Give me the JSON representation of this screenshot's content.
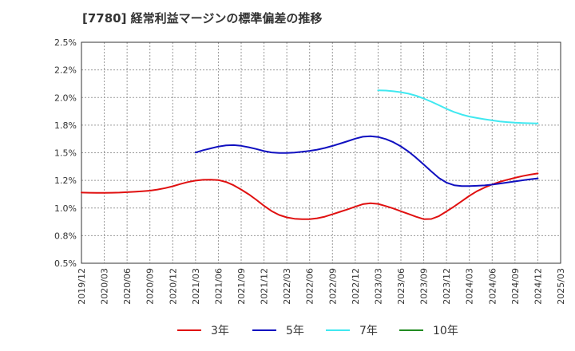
{
  "chart_data": {
    "type": "line",
    "title": "[7780]  経常利益マージンの標準偏差の推移",
    "xlabel": "",
    "ylabel": "",
    "ylim": [
      0.005,
      0.025
    ],
    "y_ticks": [
      "0.5%",
      "0.8%",
      "1.0%",
      "1.2%",
      "1.5%",
      "1.8%",
      "2.0%",
      "2.2%",
      "2.5%"
    ],
    "x_ticks": [
      "2019/12",
      "2020/03",
      "2020/06",
      "2020/09",
      "2020/12",
      "2021/03",
      "2021/06",
      "2021/09",
      "2021/12",
      "2022/03",
      "2022/06",
      "2022/09",
      "2022/12",
      "2023/03",
      "2023/06",
      "2023/09",
      "2023/12",
      "2024/03",
      "2024/06",
      "2024/09",
      "2024/12",
      "2025/03"
    ],
    "grid": true,
    "legend_position": "bottom",
    "colors": {
      "3年": "#e01010",
      "5年": "#1010c0",
      "7年": "#40e8f0",
      "10年": "#228b22"
    },
    "series": [
      {
        "name": "3年",
        "x": [
          "2019/12",
          "2020/01",
          "2020/02",
          "2020/03",
          "2020/04",
          "2020/05",
          "2020/06",
          "2020/07",
          "2020/08",
          "2020/09",
          "2020/10",
          "2020/11",
          "2020/12",
          "2021/01",
          "2021/02",
          "2021/03",
          "2021/04",
          "2021/05",
          "2021/06",
          "2021/07",
          "2021/08",
          "2021/09",
          "2021/10",
          "2021/11",
          "2021/12",
          "2022/01",
          "2022/02",
          "2022/03",
          "2022/04",
          "2022/05",
          "2022/06",
          "2022/07",
          "2022/08",
          "2022/09",
          "2022/10",
          "2022/11",
          "2022/12",
          "2023/01",
          "2023/02",
          "2023/03",
          "2023/04",
          "2023/05",
          "2023/06",
          "2023/07",
          "2023/08",
          "2023/09",
          "2023/10",
          "2023/11",
          "2023/12",
          "2024/01",
          "2024/02",
          "2024/03",
          "2024/04",
          "2024/05",
          "2024/06",
          "2024/07",
          "2024/08",
          "2024/09",
          "2024/10",
          "2024/11",
          "2024/12"
        ],
        "values": [
          0.0114,
          0.01138,
          0.01137,
          0.01137,
          0.01138,
          0.0114,
          0.01143,
          0.01147,
          0.01151,
          0.01157,
          0.01167,
          0.0118,
          0.01197,
          0.01217,
          0.01235,
          0.01248,
          0.01255,
          0.01257,
          0.01253,
          0.01236,
          0.01206,
          0.01167,
          0.01124,
          0.01074,
          0.0102,
          0.00972,
          0.00937,
          0.00915,
          0.00903,
          0.00899,
          0.00899,
          0.00907,
          0.00922,
          0.00943,
          0.00966,
          0.00988,
          0.01012,
          0.01035,
          0.01044,
          0.01037,
          0.01018,
          0.00996,
          0.00971,
          0.00946,
          0.00921,
          0.00899,
          0.00901,
          0.00927,
          0.00969,
          0.01014,
          0.01062,
          0.0111,
          0.01152,
          0.01185,
          0.01213,
          0.01237,
          0.01256,
          0.01273,
          0.01289,
          0.01302,
          0.01313
        ]
      },
      {
        "name": "5年",
        "x": [
          "2021/03",
          "2021/04",
          "2021/05",
          "2021/06",
          "2021/07",
          "2021/08",
          "2021/09",
          "2021/10",
          "2021/11",
          "2021/12",
          "2022/01",
          "2022/02",
          "2022/03",
          "2022/04",
          "2022/05",
          "2022/06",
          "2022/07",
          "2022/08",
          "2022/09",
          "2022/10",
          "2022/11",
          "2022/12",
          "2023/01",
          "2023/02",
          "2023/03",
          "2023/04",
          "2023/05",
          "2023/06",
          "2023/07",
          "2023/08",
          "2023/09",
          "2023/10",
          "2023/11",
          "2023/12",
          "2024/01",
          "2024/02",
          "2024/03",
          "2024/04",
          "2024/05",
          "2024/06",
          "2024/07",
          "2024/08",
          "2024/09",
          "2024/10",
          "2024/11",
          "2024/12"
        ],
        "values": [
          0.01502,
          0.01523,
          0.0154,
          0.01556,
          0.01567,
          0.01569,
          0.01563,
          0.0155,
          0.01534,
          0.01515,
          0.01503,
          0.01498,
          0.01498,
          0.01502,
          0.01509,
          0.01517,
          0.01528,
          0.01543,
          0.01562,
          0.01583,
          0.01605,
          0.01628,
          0.01645,
          0.0165,
          0.01643,
          0.01624,
          0.01596,
          0.01558,
          0.01511,
          0.01455,
          0.01394,
          0.01331,
          0.01272,
          0.0123,
          0.01206,
          0.01198,
          0.01198,
          0.01201,
          0.01205,
          0.01212,
          0.01221,
          0.01231,
          0.01241,
          0.01251,
          0.0126,
          0.01268
        ]
      },
      {
        "name": "7年",
        "x": [
          "2023/03",
          "2023/04",
          "2023/05",
          "2023/06",
          "2023/07",
          "2023/08",
          "2023/09",
          "2023/10",
          "2023/11",
          "2023/12",
          "2024/01",
          "2024/02",
          "2024/03",
          "2024/04",
          "2024/05",
          "2024/06",
          "2024/07",
          "2024/08",
          "2024/09",
          "2024/10",
          "2024/11",
          "2024/12"
        ],
        "values": [
          0.02065,
          0.02063,
          0.02057,
          0.02048,
          0.02035,
          0.02016,
          0.01991,
          0.01962,
          0.0193,
          0.01898,
          0.01869,
          0.01846,
          0.01828,
          0.01815,
          0.01803,
          0.01793,
          0.01784,
          0.01777,
          0.01772,
          0.01769,
          0.01767,
          0.01765
        ]
      },
      {
        "name": "10年",
        "x": [],
        "values": []
      }
    ]
  }
}
